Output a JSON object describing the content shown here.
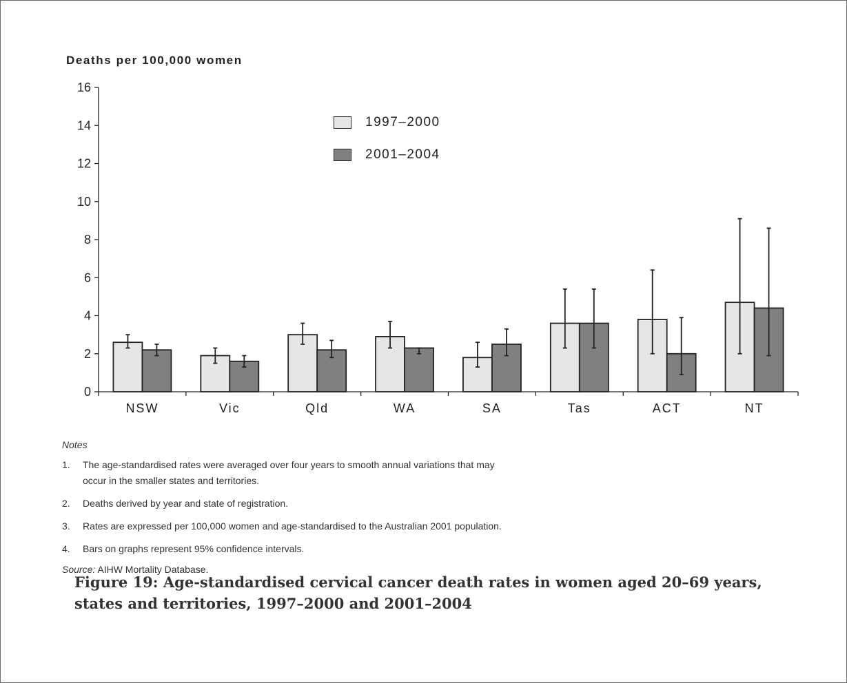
{
  "chart_data": {
    "type": "bar",
    "ylabel": "Deaths per 100,000 women",
    "ylim": [
      0,
      16
    ],
    "yticks": [
      0,
      2,
      4,
      6,
      8,
      10,
      12,
      14,
      16
    ],
    "categories": [
      "NSW",
      "Vic",
      "Qld",
      "WA",
      "SA",
      "Tas",
      "ACT",
      "NT"
    ],
    "series": [
      {
        "name": "1997–2000",
        "color": "#e6e6e6",
        "values": [
          2.6,
          1.9,
          3.0,
          2.9,
          1.8,
          3.6,
          3.8,
          4.7
        ],
        "ci_low": [
          2.3,
          1.5,
          2.5,
          2.3,
          1.3,
          2.3,
          2.0,
          2.0
        ],
        "ci_high": [
          3.0,
          2.3,
          3.6,
          3.7,
          2.6,
          5.4,
          6.4,
          9.1
        ]
      },
      {
        "name": "2001–2004",
        "color": "#808080",
        "values": [
          2.2,
          1.6,
          2.2,
          2.3,
          2.5,
          3.6,
          2.0,
          4.4
        ],
        "ci_low": [
          1.9,
          1.3,
          1.8,
          2.0,
          1.9,
          2.3,
          0.9,
          1.9
        ],
        "ci_high": [
          2.5,
          1.9,
          2.7,
          2.3,
          3.3,
          5.4,
          3.9,
          8.6
        ]
      }
    ],
    "legend_position": "top-center",
    "grid": false
  },
  "notes": {
    "heading": "Notes",
    "items": [
      {
        "num": "1.",
        "text": "The age-standardised rates were averaged over four years to smooth annual variations that may occur in the smaller states and territories."
      },
      {
        "num": "2.",
        "text": "Deaths derived by year and state of registration."
      },
      {
        "num": "3.",
        "text": "Rates are expressed per 100,000 women and age-standardised to the Australian 2001 population."
      },
      {
        "num": "4.",
        "text": "Bars on graphs represent 95% confidence intervals."
      }
    ],
    "source_label": "Source:",
    "source_text": " AIHW Mortality Database."
  },
  "caption": "Figure 19: Age-standardised cervical cancer death rates in women aged 20–69 years, states and territories, 1997–2000 and 2001–2004"
}
